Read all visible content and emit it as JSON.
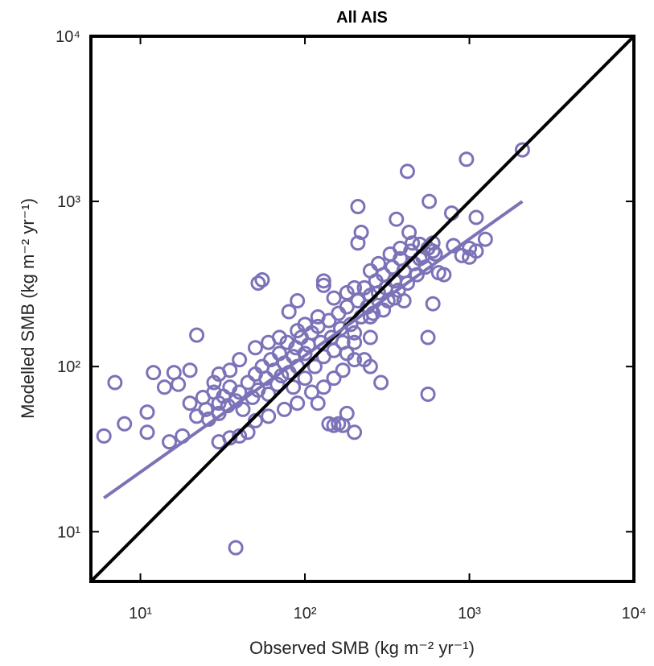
{
  "chart_data": {
    "type": "scatter",
    "title": "All AIS",
    "xlabel": "Observed SMB (kg m⁻² yr⁻¹)",
    "ylabel": "Modelled SMB (kg m⁻² yr⁻¹)",
    "xscale": "log",
    "yscale": "log",
    "xlim": [
      5,
      10000
    ],
    "ylim": [
      5,
      10000
    ],
    "xticks": [
      {
        "value": 10,
        "label": "10¹"
      },
      {
        "value": 100,
        "label": "10²"
      },
      {
        "value": 1000,
        "label": "10³"
      },
      {
        "value": 10000,
        "label": "10⁴"
      }
    ],
    "yticks": [
      {
        "value": 10,
        "label": "10¹"
      },
      {
        "value": 100,
        "label": "10²"
      },
      {
        "value": 1000,
        "label": "10³"
      },
      {
        "value": 10000,
        "label": "10⁴"
      }
    ],
    "series": [
      {
        "color": "#7b72b8",
        "x": [
          2100,
          960,
          420,
          210,
          7,
          6,
          8,
          11,
          11,
          12,
          38,
          560,
          560,
          22,
          52,
          55,
          290,
          140,
          150,
          160,
          170,
          200,
          180,
          570,
          780,
          1100,
          1250,
          1000,
          360,
          430,
          220,
          210,
          130,
          130,
          80,
          90,
          20,
          16,
          14,
          17,
          15,
          18,
          30,
          35,
          40,
          45,
          250,
          230,
          250,
          400,
          600,
          650,
          700,
          800,
          900,
          1000,
          1100,
          600,
          500,
          20,
          22,
          24,
          25,
          26,
          28,
          30,
          30,
          32,
          34,
          35,
          38,
          40,
          42,
          45,
          48,
          50,
          52,
          55,
          58,
          60,
          62,
          65,
          68,
          70,
          72,
          75,
          78,
          80,
          85,
          88,
          90,
          95,
          100,
          100,
          105,
          110,
          115,
          120,
          125,
          130,
          140,
          145,
          150,
          160,
          165,
          170,
          180,
          190,
          200,
          210,
          220,
          230,
          240,
          250,
          260,
          270,
          280,
          300,
          310,
          320,
          340,
          350,
          370,
          380,
          400,
          420,
          440,
          460,
          480,
          500,
          520,
          540,
          560,
          600,
          620,
          450,
          380,
          330,
          280,
          250,
          200,
          180,
          150,
          120,
          100,
          90,
          70,
          60,
          50,
          40,
          35,
          30,
          28,
          110,
          130,
          150,
          170,
          200,
          120,
          90,
          75,
          60,
          50,
          85,
          250,
          300,
          350,
          200,
          180
        ],
        "values": [
          2050,
          1800,
          1520,
          930,
          80,
          38,
          45,
          40,
          53,
          92,
          8,
          68,
          150,
          155,
          320,
          335,
          80,
          45,
          44,
          45,
          44,
          40,
          52,
          1000,
          850,
          800,
          590,
          520,
          780,
          650,
          650,
          560,
          330,
          310,
          215,
          250,
          95,
          92,
          75,
          78,
          35,
          38,
          35,
          37,
          38,
          40,
          150,
          110,
          100,
          250,
          240,
          370,
          360,
          540,
          470,
          460,
          500,
          500,
          450,
          60,
          50,
          65,
          55,
          48,
          70,
          60,
          52,
          66,
          58,
          75,
          62,
          70,
          55,
          80,
          65,
          90,
          72,
          100,
          85,
          68,
          110,
          95,
          78,
          120,
          88,
          105,
          140,
          92,
          115,
          130,
          100,
          150,
          85,
          120,
          135,
          160,
          100,
          175,
          140,
          115,
          190,
          150,
          125,
          210,
          170,
          140,
          230,
          180,
          160,
          250,
          200,
          300,
          230,
          270,
          210,
          330,
          280,
          360,
          300,
          250,
          400,
          330,
          290,
          450,
          380,
          320,
          500,
          420,
          360,
          550,
          460,
          400,
          520,
          560,
          480,
          560,
          520,
          480,
          420,
          380,
          300,
          280,
          260,
          200,
          180,
          165,
          150,
          140,
          130,
          110,
          95,
          90,
          80,
          70,
          75,
          85,
          95,
          110,
          60,
          60,
          55,
          50,
          47,
          75,
          200,
          220,
          260,
          140,
          120
        ]
      }
    ],
    "lines": [
      {
        "color": "#000000",
        "x": [
          5,
          10000
        ],
        "values": [
          5,
          10000
        ]
      },
      {
        "color": "#7b72b8",
        "x": [
          6,
          2100
        ],
        "values": [
          16,
          1000
        ]
      }
    ]
  }
}
